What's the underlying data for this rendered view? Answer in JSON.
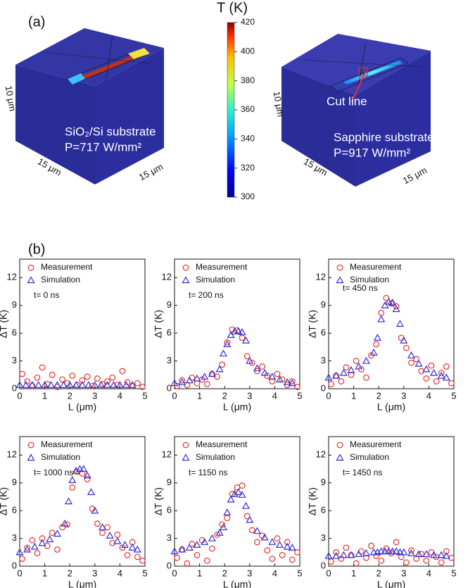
{
  "panel_a": {
    "label": "(a)",
    "colorbar": {
      "title": "T (K)",
      "lim": [
        300,
        420
      ],
      "ticks": [
        300,
        320,
        340,
        360,
        380,
        400,
        420
      ]
    },
    "left": {
      "substrate": "SiO₂/Si substrate",
      "power": "P=717 W/mm²",
      "height": "10 μm",
      "depth": "15 μm",
      "width": "15 μm"
    },
    "right": {
      "substrate": "Sapphire substrate",
      "power": "P=917 W/mm²",
      "height": "10 μm",
      "depth": "15 μm",
      "width": "15 μm",
      "cut_line": "Cut line"
    }
  },
  "panel_b": {
    "label": "(b)"
  },
  "chart_data": [
    {
      "type": "scatter",
      "annotation": "t= 0 ns",
      "xlabel": "L (μm)",
      "ylabel": "ΔT (K)",
      "xlim": [
        0,
        5
      ],
      "ylim": [
        0,
        14
      ],
      "xticks": [
        0,
        1,
        2,
        3,
        4,
        5
      ],
      "yticks": [
        0,
        3,
        6,
        9,
        12
      ],
      "series": [
        {
          "name": "Measurement",
          "color": "#e8302a",
          "marker": "circle",
          "x": [
            0.1,
            0.3,
            0.5,
            0.7,
            0.9,
            1.1,
            1.3,
            1.5,
            1.7,
            1.9,
            2.1,
            2.3,
            2.5,
            2.7,
            2.9,
            3.1,
            3.3,
            3.5,
            3.7,
            3.9,
            4.1,
            4.3,
            4.5,
            4.7,
            4.9
          ],
          "values": [
            1.6,
            0.8,
            0.3,
            1.2,
            2.3,
            0.5,
            1.5,
            0.2,
            1.0,
            0.6,
            1.4,
            0.4,
            0.9,
            1.3,
            0.3,
            1.1,
            0.5,
            0.8,
            1.2,
            0.4,
            1.9,
            0.7,
            0.3,
            0.6,
            0.2
          ]
        },
        {
          "name": "Simulation",
          "color": "#2f2fd6",
          "marker": "triangle",
          "x": [
            0,
            0.25,
            0.5,
            0.75,
            1,
            1.25,
            1.5,
            1.75,
            2,
            2.25,
            2.5,
            2.75,
            3,
            3.25,
            3.5,
            3.75,
            4,
            4.25,
            4.5
          ],
          "values": [
            0.4,
            0.4,
            0.4,
            0.4,
            0.4,
            0.4,
            0.4,
            0.4,
            0.4,
            0.4,
            0.4,
            0.4,
            0.4,
            0.4,
            0.4,
            0.4,
            0.4,
            0.4,
            0.4
          ]
        }
      ]
    },
    {
      "type": "scatter",
      "annotation": "t= 200 ns",
      "xlabel": "L (μm)",
      "ylabel": "ΔT (K)",
      "xlim": [
        0,
        5
      ],
      "ylim": [
        0,
        14
      ],
      "xticks": [
        0,
        1,
        2,
        3,
        4,
        5
      ],
      "yticks": [
        0,
        3,
        6,
        9,
        12
      ],
      "series": [
        {
          "name": "Measurement",
          "color": "#e8302a",
          "marker": "circle",
          "x": [
            0.1,
            0.3,
            0.5,
            0.7,
            0.9,
            1.1,
            1.3,
            1.5,
            1.7,
            1.9,
            2.1,
            2.3,
            2.5,
            2.7,
            2.9,
            3.1,
            3.3,
            3.5,
            3.7,
            3.9,
            4.1,
            4.3,
            4.5,
            4.7,
            4.9
          ],
          "values": [
            0.3,
            0.9,
            0.4,
            1.2,
            0.6,
            1.0,
            0.5,
            1.6,
            1.3,
            2.6,
            5.0,
            6.4,
            6.3,
            5.5,
            3.5,
            2.8,
            1.9,
            2.4,
            1.4,
            0.8,
            1.6,
            1.0,
            0.4,
            0.8,
            0.2
          ]
        },
        {
          "name": "Simulation",
          "color": "#2f2fd6",
          "marker": "triangle",
          "x": [
            0,
            0.3,
            0.6,
            0.9,
            1.2,
            1.5,
            1.8,
            1.95,
            2.1,
            2.25,
            2.4,
            2.55,
            2.7,
            2.85,
            3.0,
            3.3,
            3.6,
            3.9,
            4.2,
            4.5,
            4.7
          ],
          "values": [
            0.6,
            0.7,
            0.9,
            1.1,
            1.3,
            1.6,
            2.1,
            3.8,
            4.8,
            5.8,
            6.2,
            6.2,
            6.1,
            5.2,
            3.0,
            2.2,
            1.7,
            1.3,
            1.0,
            0.7,
            0.6
          ]
        }
      ]
    },
    {
      "type": "scatter",
      "annotation": "t= 450 ns",
      "xlabel": "L (μm)",
      "ylabel": "ΔT (K)",
      "xlim": [
        0,
        5
      ],
      "ylim": [
        0,
        14
      ],
      "xticks": [
        0,
        1,
        2,
        3,
        4,
        5
      ],
      "yticks": [
        0,
        3,
        6,
        9,
        12
      ],
      "series": [
        {
          "name": "Measurement",
          "color": "#e8302a",
          "marker": "circle",
          "x": [
            0.1,
            0.3,
            0.5,
            0.7,
            0.9,
            1.1,
            1.3,
            1.5,
            1.7,
            1.9,
            2.1,
            2.3,
            2.5,
            2.7,
            2.9,
            3.1,
            3.3,
            3.5,
            3.7,
            3.9,
            4.1,
            4.3,
            4.5,
            4.7,
            4.9
          ],
          "values": [
            0.5,
            1.4,
            0.8,
            2.3,
            1.5,
            3.0,
            2.1,
            1.2,
            3.6,
            4.8,
            8.2,
            9.8,
            9.2,
            8.9,
            5.5,
            4.4,
            2.8,
            3.2,
            1.9,
            1.1,
            2.5,
            0.8,
            1.7,
            2.4,
            0.6
          ]
        },
        {
          "name": "Simulation",
          "color": "#2f2fd6",
          "marker": "triangle",
          "x": [
            0,
            0.3,
            0.6,
            0.9,
            1.2,
            1.5,
            1.8,
            1.95,
            2.1,
            2.25,
            2.4,
            2.55,
            2.7,
            2.85,
            3.0,
            3.3,
            3.6,
            3.9,
            4.2,
            4.5,
            4.7
          ],
          "values": [
            1.2,
            1.4,
            1.7,
            2.0,
            2.4,
            3.0,
            3.9,
            5.5,
            7.5,
            9.0,
            9.4,
            9.3,
            8.6,
            7.0,
            5.2,
            3.6,
            2.7,
            2.1,
            1.7,
            1.4,
            1.2
          ]
        }
      ]
    },
    {
      "type": "scatter",
      "annotation": "t= 1000 ns",
      "xlabel": "L (μm)",
      "ylabel": "ΔT (K)",
      "xlim": [
        0,
        5
      ],
      "ylim": [
        0,
        14
      ],
      "xticks": [
        0,
        1,
        2,
        3,
        4,
        5
      ],
      "yticks": [
        0,
        3,
        6,
        9,
        12
      ],
      "series": [
        {
          "name": "Measurement",
          "color": "#e8302a",
          "marker": "circle",
          "x": [
            0.1,
            0.3,
            0.5,
            0.7,
            0.9,
            1.1,
            1.3,
            1.5,
            1.7,
            1.9,
            2.1,
            2.3,
            2.5,
            2.7,
            2.9,
            3.1,
            3.3,
            3.5,
            3.7,
            3.9,
            4.1,
            4.3,
            4.5,
            4.7,
            4.9
          ],
          "values": [
            0.8,
            2.0,
            2.8,
            1.4,
            3.0,
            2.2,
            3.6,
            1.8,
            4.2,
            4.5,
            8.5,
            10.2,
            10.0,
            9.4,
            6.2,
            4.6,
            3.6,
            4.2,
            2.5,
            3.4,
            2.0,
            1.2,
            2.6,
            1.0,
            0.6
          ]
        },
        {
          "name": "Simulation",
          "color": "#2f2fd6",
          "marker": "triangle",
          "x": [
            0,
            0.3,
            0.6,
            0.9,
            1.2,
            1.5,
            1.8,
            1.95,
            2.1,
            2.25,
            2.4,
            2.55,
            2.7,
            2.85,
            3.0,
            3.3,
            3.6,
            3.9,
            4.2,
            4.5,
            4.7
          ],
          "values": [
            1.5,
            1.8,
            2.1,
            2.5,
            2.9,
            3.5,
            4.6,
            7.0,
            9.3,
            10.3,
            10.5,
            10.5,
            9.8,
            8.0,
            6.0,
            4.2,
            3.3,
            2.7,
            2.3,
            2.0,
            1.8
          ]
        }
      ]
    },
    {
      "type": "scatter",
      "annotation": "t= 1150 ns",
      "xlabel": "L (μm)",
      "ylabel": "ΔT (K)",
      "xlim": [
        0,
        5
      ],
      "ylim": [
        0,
        14
      ],
      "xticks": [
        0,
        1,
        2,
        3,
        4,
        5
      ],
      "yticks": [
        0,
        3,
        6,
        9,
        12
      ],
      "series": [
        {
          "name": "Measurement",
          "color": "#e8302a",
          "marker": "circle",
          "x": [
            0.1,
            0.3,
            0.5,
            0.7,
            0.9,
            1.1,
            1.3,
            1.5,
            1.7,
            1.9,
            2.1,
            2.3,
            2.5,
            2.7,
            2.9,
            3.1,
            3.3,
            3.5,
            3.7,
            3.9,
            4.1,
            4.3,
            4.5,
            4.7,
            4.9
          ],
          "values": [
            0.9,
            1.8,
            0.3,
            2.4,
            1.2,
            2.8,
            0.6,
            1.9,
            3.4,
            4.5,
            5.2,
            7.8,
            8.5,
            8.7,
            5.4,
            3.9,
            2.6,
            3.3,
            1.7,
            0.8,
            3.0,
            1.2,
            2.6,
            0.7,
            1.5
          ]
        },
        {
          "name": "Simulation",
          "color": "#2f2fd6",
          "marker": "triangle",
          "x": [
            0,
            0.3,
            0.6,
            0.9,
            1.2,
            1.5,
            1.8,
            1.95,
            2.1,
            2.25,
            2.4,
            2.55,
            2.7,
            2.85,
            3.0,
            3.3,
            3.6,
            3.9,
            4.2,
            4.5,
            4.7
          ],
          "values": [
            1.6,
            1.8,
            2.0,
            2.3,
            2.6,
            3.0,
            3.6,
            4.2,
            5.8,
            7.2,
            7.8,
            8.0,
            7.7,
            6.5,
            5.0,
            3.8,
            3.1,
            2.6,
            2.3,
            2.1,
            2.0
          ]
        }
      ]
    },
    {
      "type": "scatter",
      "annotation": "t= 1450 ns",
      "xlabel": "L (μm)",
      "ylabel": "ΔT (K)",
      "xlim": [
        0,
        5
      ],
      "ylim": [
        0,
        14
      ],
      "xticks": [
        0,
        1,
        2,
        3,
        4,
        5
      ],
      "yticks": [
        0,
        3,
        6,
        9,
        12
      ],
      "series": [
        {
          "name": "Measurement",
          "color": "#e8302a",
          "marker": "circle",
          "x": [
            0.1,
            0.3,
            0.5,
            0.7,
            0.9,
            1.1,
            1.3,
            1.5,
            1.7,
            1.9,
            2.1,
            2.3,
            2.5,
            2.7,
            2.9,
            3.1,
            3.3,
            3.5,
            3.7,
            3.9,
            4.1,
            4.3,
            4.5,
            4.7,
            4.9
          ],
          "values": [
            0.5,
            1.5,
            0.8,
            2.0,
            1.2,
            0.3,
            1.6,
            0.9,
            2.2,
            1.1,
            0.6,
            1.9,
            1.4,
            2.6,
            1.0,
            0.4,
            1.7,
            0.8,
            1.3,
            0.6,
            1.5,
            1.0,
            0.4,
            1.6,
            0.9
          ]
        },
        {
          "name": "Simulation",
          "color": "#2f2fd6",
          "marker": "triangle",
          "x": [
            0,
            0.3,
            0.6,
            0.9,
            1.2,
            1.5,
            1.8,
            1.95,
            2.1,
            2.25,
            2.4,
            2.55,
            2.7,
            2.85,
            3.0,
            3.3,
            3.6,
            3.9,
            4.2,
            4.5,
            4.7
          ],
          "values": [
            1.1,
            1.1,
            1.2,
            1.2,
            1.3,
            1.4,
            1.5,
            1.5,
            1.6,
            1.6,
            1.6,
            1.6,
            1.6,
            1.5,
            1.5,
            1.4,
            1.3,
            1.3,
            1.2,
            1.2,
            1.1
          ]
        }
      ]
    }
  ]
}
